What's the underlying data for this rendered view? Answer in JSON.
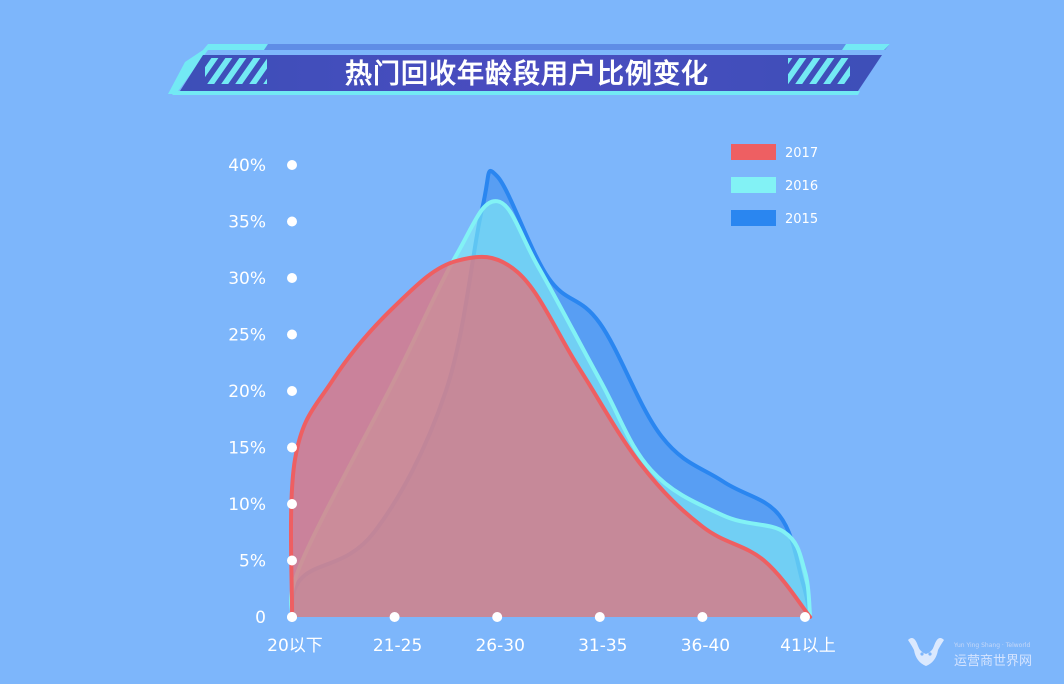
{
  "chart_data": {
    "type": "area",
    "title": "热门回收年龄段用户比例变化",
    "categories": [
      "20以下",
      "21-25",
      "26-30",
      "31-35",
      "36-40",
      "41以上"
    ],
    "y_ticks": [
      "0",
      "5%",
      "10%",
      "15%",
      "20%",
      "25%",
      "30%",
      "35%",
      "40%"
    ],
    "ylim": [
      0,
      40
    ],
    "grid": false,
    "legend_position": "top-right",
    "series": [
      {
        "name": "2015",
        "color": "#2a86f0",
        "fill": "rgba(58,138,236,0.55)",
        "points": [
          [
            0,
            0
          ],
          [
            0.1,
            3.5
          ],
          [
            0.8,
            7.5
          ],
          [
            1.5,
            20
          ],
          [
            1.85,
            36
          ],
          [
            2.0,
            39
          ],
          [
            2.5,
            30
          ],
          [
            3.0,
            26
          ],
          [
            3.6,
            16
          ],
          [
            4.2,
            12
          ],
          [
            4.75,
            9
          ],
          [
            4.98,
            3
          ],
          [
            5.05,
            0
          ]
        ]
      },
      {
        "name": "2016",
        "color": "#82f2f5",
        "fill": "rgba(130,240,245,0.60)",
        "points": [
          [
            0,
            0
          ],
          [
            0.1,
            5
          ],
          [
            1.0,
            21
          ],
          [
            1.6,
            32
          ],
          [
            2.0,
            36.8
          ],
          [
            2.4,
            31
          ],
          [
            3.0,
            21
          ],
          [
            3.5,
            13
          ],
          [
            4.2,
            9
          ],
          [
            4.8,
            7.5
          ],
          [
            5.0,
            4
          ],
          [
            5.05,
            0
          ]
        ]
      },
      {
        "name": "2017",
        "color": "#ee5f62",
        "fill": "rgba(232,110,118,0.72)",
        "points": [
          [
            0,
            0
          ],
          [
            0.03,
            14
          ],
          [
            0.4,
            21
          ],
          [
            1.0,
            27.5
          ],
          [
            1.6,
            31.5
          ],
          [
            2.2,
            30.5
          ],
          [
            2.8,
            22
          ],
          [
            3.4,
            13.5
          ],
          [
            4.0,
            8
          ],
          [
            4.6,
            5
          ],
          [
            5.05,
            0
          ]
        ]
      }
    ]
  },
  "watermark": {
    "text": "运营商世界网",
    "subtext": "Yun Ying Shang · Telworld"
  }
}
